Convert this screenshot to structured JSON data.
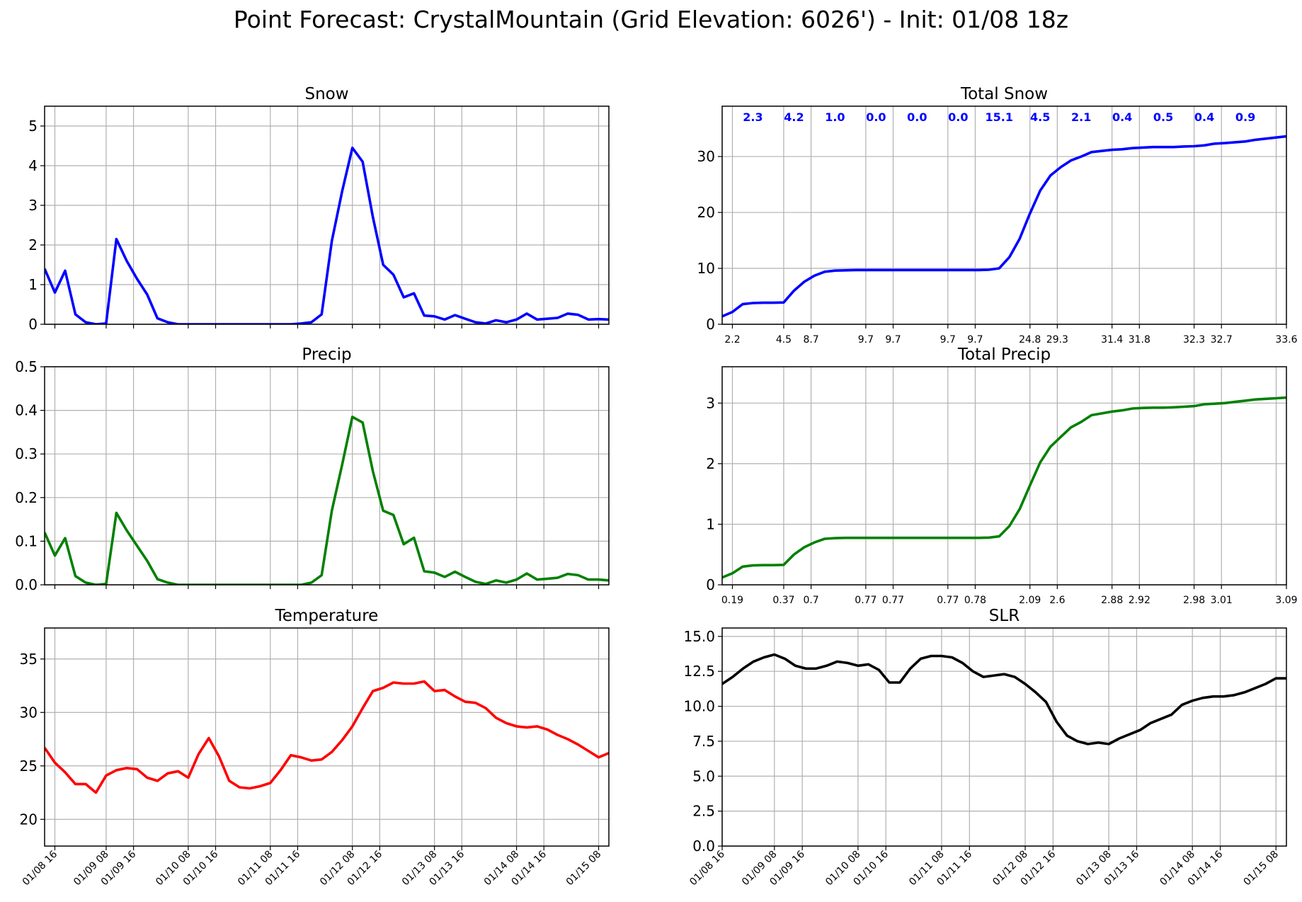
{
  "figure": {
    "title": "Point Forecast: CrystalMountain (Grid Elevation: 6026') - Init: 01/08 18z"
  },
  "chart_data": [
    {
      "id": "snow",
      "type": "line",
      "title": "Snow",
      "color": "#0000ff",
      "xlim": [
        -2,
        163
      ],
      "ylim": [
        0,
        5.5
      ],
      "yticks": [
        0,
        1,
        2,
        3,
        4,
        5
      ],
      "ytick_labels": [
        "0",
        "1",
        "2",
        "3",
        "4",
        "5"
      ],
      "grid": true,
      "x": [
        -2,
        1,
        4,
        7,
        10,
        13,
        16,
        19,
        22,
        25,
        28,
        31,
        34,
        37,
        40,
        43,
        46,
        49,
        52,
        55,
        58,
        61,
        64,
        67,
        70,
        73,
        76,
        79,
        82,
        85,
        88,
        91,
        94,
        97,
        100,
        103,
        106,
        109,
        112,
        115,
        118,
        121,
        124,
        127,
        130,
        133,
        136,
        139,
        142,
        145,
        148,
        151,
        154,
        157,
        160,
        163
      ],
      "values": [
        1.4,
        0.8,
        1.35,
        0.25,
        0.05,
        0.0,
        0.02,
        2.15,
        1.6,
        1.15,
        0.75,
        0.15,
        0.05,
        0.0,
        0.0,
        0.0,
        0.0,
        0.0,
        0.0,
        0.0,
        0.0,
        0.0,
        0.0,
        0.0,
        0.0,
        0.02,
        0.05,
        0.25,
        2.1,
        3.35,
        4.45,
        4.1,
        2.7,
        1.5,
        1.25,
        0.68,
        0.78,
        0.22,
        0.2,
        0.12,
        0.23,
        0.14,
        0.05,
        0.02,
        0.1,
        0.05,
        0.12,
        0.27,
        0.12,
        0.14,
        0.16,
        0.27,
        0.24,
        0.12,
        0.13,
        0.12
      ]
    },
    {
      "id": "total-snow",
      "type": "line",
      "title": "Total Snow",
      "color": "#0000ff",
      "xlim": [
        -2,
        163
      ],
      "ylim": [
        0,
        39
      ],
      "yticks": [
        0,
        10,
        20,
        30
      ],
      "ytick_labels": [
        "0",
        "10",
        "20",
        "30"
      ],
      "grid": true,
      "x": [
        -2,
        1,
        4,
        7,
        10,
        13,
        16,
        19,
        22,
        25,
        28,
        31,
        34,
        37,
        40,
        43,
        46,
        49,
        52,
        55,
        58,
        61,
        64,
        67,
        70,
        73,
        76,
        79,
        82,
        85,
        88,
        91,
        94,
        97,
        100,
        103,
        106,
        109,
        112,
        115,
        118,
        121,
        124,
        127,
        130,
        133,
        136,
        139,
        142,
        145,
        148,
        151,
        154,
        157,
        160,
        163
      ],
      "values": [
        1.4,
        2.2,
        3.6,
        3.8,
        3.85,
        3.85,
        3.9,
        6.0,
        7.6,
        8.7,
        9.4,
        9.6,
        9.65,
        9.7,
        9.7,
        9.7,
        9.7,
        9.7,
        9.7,
        9.7,
        9.7,
        9.7,
        9.7,
        9.7,
        9.7,
        9.7,
        9.75,
        10.0,
        12.0,
        15.3,
        19.8,
        23.9,
        26.6,
        28.1,
        29.3,
        30.0,
        30.8,
        31.0,
        31.2,
        31.3,
        31.5,
        31.6,
        31.7,
        31.7,
        31.7,
        31.8,
        31.85,
        32.0,
        32.3,
        32.4,
        32.55,
        32.7,
        33.0,
        33.2,
        33.4,
        33.6
      ],
      "interval_totals": [
        "2.3",
        "4.2",
        "1.0",
        "0.0",
        "0.0",
        "0.0",
        "15.1",
        "4.5",
        "2.1",
        "0.4",
        "0.5",
        "0.4",
        "0.9"
      ],
      "interval_centers": [
        7,
        19,
        31,
        43,
        55,
        67,
        79,
        91,
        103,
        115,
        127,
        139,
        151
      ],
      "cumulative_labels": [
        "2.2",
        "4.5",
        "8.7",
        "9.7",
        "9.7",
        "9.7",
        "9.7",
        "24.8",
        "29.3",
        "31.4",
        "31.8",
        "32.3",
        "32.7",
        "33.6"
      ],
      "cumulative_positions": [
        1,
        16,
        24,
        40,
        48,
        64,
        72,
        88,
        96,
        112,
        120,
        136,
        144,
        163
      ]
    },
    {
      "id": "precip",
      "type": "line",
      "title": "Precip",
      "color": "#008000",
      "xlim": [
        -2,
        163
      ],
      "ylim": [
        0,
        0.5
      ],
      "yticks": [
        0.0,
        0.1,
        0.2,
        0.3,
        0.4,
        0.5
      ],
      "ytick_labels": [
        "0.0",
        "0.1",
        "0.2",
        "0.3",
        "0.4",
        "0.5"
      ],
      "grid": true,
      "x": [
        -2,
        1,
        4,
        7,
        10,
        13,
        16,
        19,
        22,
        25,
        28,
        31,
        34,
        37,
        40,
        43,
        46,
        49,
        52,
        55,
        58,
        61,
        64,
        67,
        70,
        73,
        76,
        79,
        82,
        85,
        88,
        91,
        94,
        97,
        100,
        103,
        106,
        109,
        112,
        115,
        118,
        121,
        124,
        127,
        130,
        133,
        136,
        139,
        142,
        145,
        148,
        151,
        154,
        157,
        160,
        163
      ],
      "values": [
        0.12,
        0.067,
        0.107,
        0.02,
        0.005,
        0.0,
        0.002,
        0.165,
        0.125,
        0.09,
        0.055,
        0.013,
        0.005,
        0.0,
        0.0,
        0.0,
        0.0,
        0.0,
        0.0,
        0.0,
        0.0,
        0.0,
        0.0,
        0.0,
        0.0,
        0.0,
        0.005,
        0.022,
        0.17,
        0.275,
        0.385,
        0.372,
        0.26,
        0.17,
        0.16,
        0.093,
        0.108,
        0.031,
        0.028,
        0.018,
        0.03,
        0.018,
        0.007,
        0.002,
        0.01,
        0.005,
        0.012,
        0.026,
        0.012,
        0.014,
        0.016,
        0.025,
        0.022,
        0.012,
        0.012,
        0.01
      ]
    },
    {
      "id": "total-precip",
      "type": "line",
      "title": "Total Precip",
      "color": "#008000",
      "xlim": [
        -2,
        163
      ],
      "ylim": [
        0,
        3.6
      ],
      "yticks": [
        0,
        1,
        2,
        3
      ],
      "ytick_labels": [
        "0",
        "1",
        "2",
        "3"
      ],
      "grid": true,
      "x": [
        -2,
        1,
        4,
        7,
        10,
        13,
        16,
        19,
        22,
        25,
        28,
        31,
        34,
        37,
        40,
        43,
        46,
        49,
        52,
        55,
        58,
        61,
        64,
        67,
        70,
        73,
        76,
        79,
        82,
        85,
        88,
        91,
        94,
        97,
        100,
        103,
        106,
        109,
        112,
        115,
        118,
        121,
        124,
        127,
        130,
        133,
        136,
        139,
        142,
        145,
        148,
        151,
        154,
        157,
        160,
        163
      ],
      "values": [
        0.12,
        0.19,
        0.3,
        0.32,
        0.325,
        0.325,
        0.33,
        0.5,
        0.62,
        0.7,
        0.76,
        0.77,
        0.775,
        0.775,
        0.775,
        0.775,
        0.775,
        0.775,
        0.775,
        0.775,
        0.775,
        0.775,
        0.775,
        0.775,
        0.775,
        0.775,
        0.78,
        0.8,
        0.97,
        1.25,
        1.64,
        2.02,
        2.28,
        2.44,
        2.6,
        2.69,
        2.8,
        2.83,
        2.86,
        2.88,
        2.91,
        2.92,
        2.925,
        2.925,
        2.93,
        2.94,
        2.95,
        2.98,
        2.99,
        3.0,
        3.02,
        3.04,
        3.06,
        3.07,
        3.08,
        3.09
      ],
      "cumulative_labels": [
        "0.19",
        "0.37",
        "0.7",
        "0.77",
        "0.77",
        "0.77",
        "0.78",
        "2.09",
        "2.6",
        "2.88",
        "2.92",
        "2.98",
        "3.01",
        "3.09"
      ],
      "cumulative_positions": [
        1,
        16,
        24,
        40,
        48,
        64,
        72,
        88,
        96,
        112,
        120,
        136,
        144,
        163
      ]
    },
    {
      "id": "temperature",
      "type": "line",
      "title": "Temperature",
      "color": "#ff0000",
      "xlim": [
        -2,
        163
      ],
      "ylim": [
        17.5,
        37.9
      ],
      "yticks": [
        20,
        25,
        30,
        35
      ],
      "ytick_labels": [
        "20",
        "25",
        "30",
        "35"
      ],
      "grid": true,
      "x": [
        -2,
        1,
        4,
        7,
        10,
        13,
        16,
        19,
        22,
        25,
        28,
        31,
        34,
        37,
        40,
        43,
        46,
        49,
        52,
        55,
        58,
        61,
        64,
        67,
        70,
        73,
        76,
        79,
        82,
        85,
        88,
        91,
        94,
        97,
        100,
        103,
        106,
        109,
        112,
        115,
        118,
        121,
        124,
        127,
        130,
        133,
        136,
        139,
        142,
        145,
        148,
        151,
        154,
        157,
        160,
        163
      ],
      "values": [
        26.7,
        25.3,
        24.4,
        23.3,
        23.3,
        22.5,
        24.1,
        24.6,
        24.8,
        24.7,
        23.9,
        23.6,
        24.3,
        24.5,
        23.9,
        26.1,
        27.6,
        25.9,
        23.6,
        23.0,
        22.9,
        23.1,
        23.4,
        24.6,
        26.0,
        25.8,
        25.5,
        25.6,
        26.3,
        27.4,
        28.7,
        30.4,
        32.0,
        32.3,
        32.8,
        32.7,
        32.7,
        32.9,
        32.0,
        32.1,
        31.5,
        31.0,
        30.9,
        30.4,
        29.5,
        29.0,
        28.7,
        28.6,
        28.7,
        28.4,
        27.9,
        27.5,
        27.0,
        26.4,
        25.8,
        26.2
      ],
      "xtick_labels": [
        "01/08 16",
        "01/09 08",
        "01/09 16",
        "01/10 08",
        "01/10 16",
        "01/11 08",
        "01/11 16",
        "01/12 08",
        "01/12 16",
        "01/13 08",
        "01/13 16",
        "01/14 08",
        "01/14 16",
        "01/15 08"
      ],
      "xtick_positions": [
        1,
        16,
        24,
        40,
        48,
        64,
        72,
        88,
        96,
        112,
        120,
        136,
        144,
        160
      ]
    },
    {
      "id": "slr",
      "type": "line",
      "title": "SLR",
      "color": "#000000",
      "xlim": [
        1,
        163
      ],
      "ylim": [
        0,
        15.6
      ],
      "yticks": [
        0.0,
        2.5,
        5.0,
        7.5,
        10.0,
        12.5,
        15.0
      ],
      "ytick_labels": [
        "0.0",
        "2.5",
        "5.0",
        "7.5",
        "10.0",
        "12.5",
        "15.0"
      ],
      "grid": true,
      "x": [
        1,
        4,
        7,
        10,
        13,
        16,
        19,
        22,
        25,
        28,
        31,
        34,
        37,
        40,
        43,
        46,
        49,
        52,
        55,
        58,
        61,
        64,
        67,
        70,
        73,
        76,
        79,
        82,
        85,
        88,
        91,
        94,
        97,
        100,
        103,
        106,
        109,
        112,
        115,
        118,
        121,
        124,
        127,
        130,
        133,
        136,
        139,
        142,
        145,
        148,
        151,
        154,
        157,
        160,
        163
      ],
      "values": [
        11.6,
        12.1,
        12.7,
        13.2,
        13.5,
        13.7,
        13.4,
        12.9,
        12.7,
        12.7,
        12.9,
        13.2,
        13.1,
        12.9,
        13.0,
        12.6,
        11.7,
        11.7,
        12.7,
        13.4,
        13.6,
        13.6,
        13.5,
        13.1,
        12.5,
        12.1,
        12.2,
        12.3,
        12.1,
        11.6,
        11.0,
        10.3,
        8.9,
        7.9,
        7.5,
        7.3,
        7.4,
        7.3,
        7.7,
        8.0,
        8.3,
        8.8,
        9.1,
        9.4,
        10.1,
        10.4,
        10.6,
        10.7,
        10.7,
        10.8,
        11.0,
        11.3,
        11.6,
        12.0,
        12.0
      ],
      "xtick_labels": [
        "01/08 16",
        "01/09 08",
        "01/09 16",
        "01/10 08",
        "01/10 16",
        "01/11 08",
        "01/11 16",
        "01/12 08",
        "01/12 16",
        "01/13 08",
        "01/13 16",
        "01/14 08",
        "01/14 16",
        "01/15 08"
      ],
      "xtick_positions": [
        1,
        16,
        24,
        40,
        48,
        64,
        72,
        88,
        96,
        112,
        120,
        136,
        144,
        160
      ]
    }
  ]
}
